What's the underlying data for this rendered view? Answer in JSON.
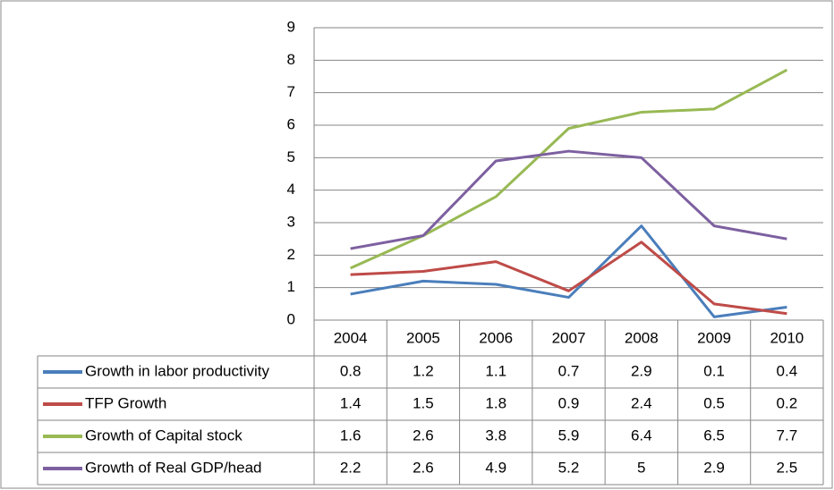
{
  "chart_data": {
    "type": "line",
    "categories": [
      "2004",
      "2005",
      "2006",
      "2007",
      "2008",
      "2009",
      "2010"
    ],
    "series": [
      {
        "name": "Growth in labor productivity",
        "color": "#4a7ebb",
        "values": [
          0.8,
          1.2,
          1.1,
          0.7,
          2.9,
          0.1,
          0.4
        ]
      },
      {
        "name": "TFP Growth",
        "color": "#be4b48",
        "values": [
          1.4,
          1.5,
          1.8,
          0.9,
          2.4,
          0.5,
          0.2
        ]
      },
      {
        "name": "Growth of Capital stock",
        "color": "#98b954",
        "values": [
          1.6,
          2.6,
          3.8,
          5.9,
          6.4,
          6.5,
          7.7
        ]
      },
      {
        "name": "Growth of Real GDP/head",
        "color": "#7d60a0",
        "values": [
          2.2,
          2.6,
          4.9,
          5.2,
          5,
          2.9,
          2.5
        ]
      }
    ],
    "ylim": [
      0,
      9
    ],
    "yticks": [
      0,
      1,
      2,
      3,
      4,
      5,
      6,
      7,
      8,
      9
    ],
    "grid": true
  }
}
